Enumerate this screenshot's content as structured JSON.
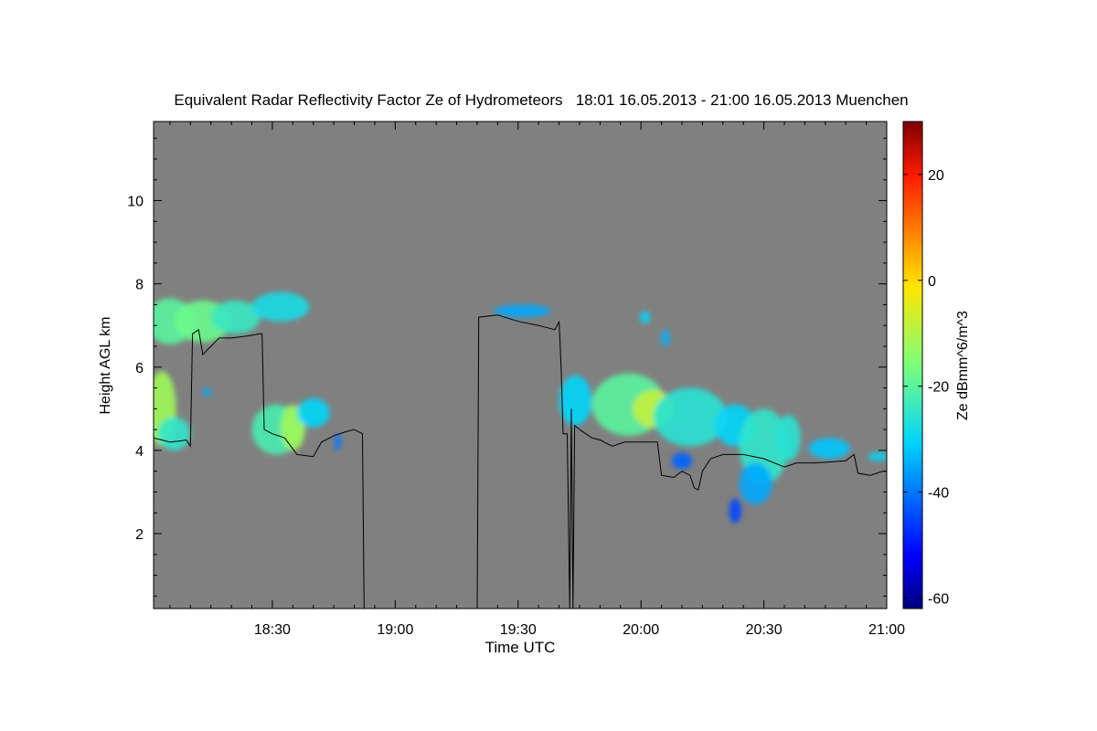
{
  "chart_data": {
    "type": "heatmap",
    "title": "Equivalent Radar Reflectivity Factor Ze of Hydrometeors   18:01 16.05.2013 - 21:00 16.05.2013 Muenchen",
    "xlabel": "Time UTC",
    "ylabel": "Height AGL km",
    "colorbar_label": "Ze dBmm^6/m^3",
    "x_unit": "minutes after 18:00 UTC",
    "xlim": [
      1,
      180
    ],
    "ylim": [
      0.2,
      11.9
    ],
    "x_ticks": [
      {
        "value": 30,
        "label": "18:30"
      },
      {
        "value": 60,
        "label": "19:00"
      },
      {
        "value": 90,
        "label": "19:30"
      },
      {
        "value": 120,
        "label": "20:00"
      },
      {
        "value": 150,
        "label": "20:30"
      },
      {
        "value": 180,
        "label": "21:00"
      }
    ],
    "y_ticks": [
      {
        "value": 2,
        "label": "2"
      },
      {
        "value": 4,
        "label": "4"
      },
      {
        "value": 6,
        "label": "6"
      },
      {
        "value": 8,
        "label": "8"
      },
      {
        "value": 10,
        "label": "10"
      }
    ],
    "colorbar_range": [
      -62,
      30
    ],
    "colorbar_ticks": [
      {
        "value": 20,
        "label": "20"
      },
      {
        "value": 0,
        "label": "0"
      },
      {
        "value": -20,
        "label": "-20"
      },
      {
        "value": -40,
        "label": "-40"
      },
      {
        "value": -60,
        "label": "-60"
      }
    ],
    "background_color": "#808080",
    "line_color": "#000000",
    "cloud_base_line": [
      [
        1,
        4.3
      ],
      [
        3,
        4.25
      ],
      [
        5,
        4.2
      ],
      [
        7,
        4.22
      ],
      [
        9,
        4.25
      ],
      [
        10,
        4.1
      ],
      [
        10.5,
        6.8
      ],
      [
        12,
        6.9
      ],
      [
        13,
        6.3
      ],
      [
        15,
        6.5
      ],
      [
        17,
        6.7
      ],
      [
        20,
        6.7
      ],
      [
        24,
        6.75
      ],
      [
        27,
        6.8
      ],
      [
        27.5,
        6.8
      ],
      [
        28,
        4.5
      ],
      [
        30,
        4.4
      ],
      [
        33,
        4.3
      ],
      [
        36,
        3.9
      ],
      [
        40,
        3.85
      ],
      [
        42,
        4.2
      ],
      [
        45,
        4.35
      ],
      [
        48,
        4.45
      ],
      [
        50,
        4.5
      ],
      [
        52,
        4.4
      ],
      [
        52.4,
        0.2
      ],
      [
        80,
        0.2
      ],
      [
        80.4,
        7.2
      ],
      [
        85,
        7.25
      ],
      [
        90,
        7.1
      ],
      [
        95,
        7.0
      ],
      [
        99,
        6.9
      ],
      [
        100,
        7.1
      ],
      [
        100.5,
        6.0
      ],
      [
        101,
        4.4
      ],
      [
        102,
        4.4
      ],
      [
        102.6,
        0.2
      ],
      [
        103,
        5.0
      ],
      [
        103.4,
        0.2
      ],
      [
        103.8,
        4.6
      ],
      [
        105,
        4.5
      ],
      [
        108,
        4.3
      ],
      [
        110,
        4.25
      ],
      [
        113,
        4.1
      ],
      [
        116,
        4.2
      ],
      [
        120,
        4.2
      ],
      [
        124,
        4.2
      ],
      [
        125,
        3.4
      ],
      [
        128,
        3.35
      ],
      [
        130,
        3.5
      ],
      [
        132,
        3.4
      ],
      [
        133,
        3.1
      ],
      [
        134,
        3.05
      ],
      [
        135,
        3.5
      ],
      [
        137,
        3.8
      ],
      [
        140,
        3.9
      ],
      [
        145,
        3.9
      ],
      [
        150,
        3.8
      ],
      [
        155,
        3.6
      ],
      [
        158,
        3.7
      ],
      [
        162,
        3.7
      ],
      [
        166,
        3.72
      ],
      [
        170,
        3.75
      ],
      [
        172,
        3.9
      ],
      [
        173,
        3.45
      ],
      [
        176,
        3.4
      ],
      [
        179,
        3.5
      ],
      [
        180,
        3.5
      ]
    ],
    "reflectivity_patches": [
      {
        "center": [
          5,
          7.1
        ],
        "radii": [
          6,
          0.55
        ],
        "ze": -20
      },
      {
        "center": [
          13,
          7.1
        ],
        "radii": [
          7,
          0.5
        ],
        "ze": -18
      },
      {
        "center": [
          21,
          7.2
        ],
        "radii": [
          6,
          0.4
        ],
        "ze": -24
      },
      {
        "center": [
          32,
          7.45
        ],
        "radii": [
          7,
          0.35
        ],
        "ze": -28
      },
      {
        "center": [
          3,
          5.0
        ],
        "radii": [
          3.5,
          0.9
        ],
        "ze": -12
      },
      {
        "center": [
          6,
          4.4
        ],
        "radii": [
          4,
          0.4
        ],
        "ze": -25
      },
      {
        "center": [
          31,
          4.5
        ],
        "radii": [
          6,
          0.6
        ],
        "ze": -22
      },
      {
        "center": [
          35,
          4.55
        ],
        "radii": [
          3,
          0.55
        ],
        "ze": -12
      },
      {
        "center": [
          40,
          4.9
        ],
        "radii": [
          4,
          0.35
        ],
        "ze": -30
      },
      {
        "center": [
          91,
          7.35
        ],
        "radii": [
          7,
          0.15
        ],
        "ze": -35
      },
      {
        "center": [
          104,
          5.2
        ],
        "radii": [
          4,
          0.6
        ],
        "ze": -30
      },
      {
        "center": [
          117,
          5.1
        ],
        "radii": [
          9,
          0.75
        ],
        "ze": -20
      },
      {
        "center": [
          123,
          5.0
        ],
        "radii": [
          5,
          0.45
        ],
        "ze": -8
      },
      {
        "center": [
          132,
          4.8
        ],
        "radii": [
          9,
          0.7
        ],
        "ze": -26
      },
      {
        "center": [
          143,
          4.6
        ],
        "radii": [
          5,
          0.5
        ],
        "ze": -30
      },
      {
        "center": [
          150,
          4.1
        ],
        "radii": [
          6,
          0.9
        ],
        "ze": -25
      },
      {
        "center": [
          148,
          3.2
        ],
        "radii": [
          4,
          0.5
        ],
        "ze": -35
      },
      {
        "center": [
          156,
          4.3
        ],
        "radii": [
          3,
          0.55
        ],
        "ze": -26
      },
      {
        "center": [
          166,
          4.05
        ],
        "radii": [
          5,
          0.25
        ],
        "ze": -32
      },
      {
        "center": [
          178,
          3.85
        ],
        "radii": [
          2.5,
          0.1
        ],
        "ze": -30
      },
      {
        "center": [
          121,
          7.2
        ],
        "radii": [
          1.2,
          0.15
        ],
        "ze": -30
      },
      {
        "center": [
          126,
          6.7
        ],
        "radii": [
          1.0,
          0.2
        ],
        "ze": -34
      },
      {
        "center": [
          14,
          5.4
        ],
        "radii": [
          1.0,
          0.1
        ],
        "ze": -35
      },
      {
        "center": [
          46,
          4.2
        ],
        "radii": [
          0.8,
          0.2
        ],
        "ze": -40
      },
      {
        "center": [
          130,
          3.75
        ],
        "radii": [
          2.5,
          0.2
        ],
        "ze": -42
      },
      {
        "center": [
          143,
          2.55
        ],
        "radii": [
          1.5,
          0.3
        ],
        "ze": -45
      }
    ]
  }
}
